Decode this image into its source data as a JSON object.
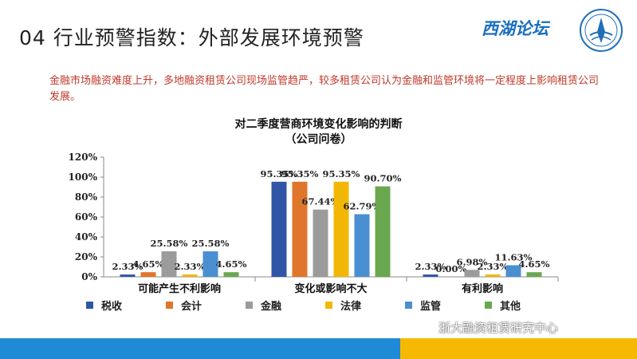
{
  "slide": {
    "title": "04 行业预警指数：外部发展环境预警",
    "logo_text": "西湖论坛",
    "intro": "金融市场融资难度上升，多地融资租赁公司现场监管趋严，较多租赁公司认为金融和监管环境将一定程度上影响租赁公司发展。",
    "watermark": "浙大融资租赁研究中心"
  },
  "chart_data": {
    "type": "bar",
    "title": "对二季度营商环境变化影响的判断",
    "subtitle": "（公司问卷）",
    "categories": [
      "可能产生不利影响",
      "变化或影响不大",
      "有利影响"
    ],
    "y_ticks": [
      "0%",
      "20%",
      "40%",
      "60%",
      "80%",
      "100%",
      "120%"
    ],
    "ylim": [
      0,
      120
    ],
    "grid": false,
    "legend_position": "bottom",
    "series": [
      {
        "name": "税收",
        "color": "#2f56a6",
        "values": [
          2.33,
          95.35,
          2.33
        ],
        "labels": [
          "2.33%",
          "95.35%",
          "2.33%"
        ]
      },
      {
        "name": "会计",
        "color": "#e0762b",
        "values": [
          4.65,
          95.35,
          0.0
        ],
        "labels": [
          "4.65%",
          "95.35%",
          "0.00%"
        ]
      },
      {
        "name": "金融",
        "color": "#9b9b9b",
        "values": [
          25.58,
          67.44,
          6.98
        ],
        "labels": [
          "25.58%",
          "67.44%",
          "6.98%"
        ]
      },
      {
        "name": "法律",
        "color": "#f2b705",
        "values": [
          2.33,
          95.35,
          2.33
        ],
        "labels": [
          "2.33%",
          "95.35%",
          "2.33%"
        ]
      },
      {
        "name": "监管",
        "color": "#4a8fd1",
        "values": [
          25.58,
          62.79,
          11.63
        ],
        "labels": [
          "25.58%",
          "62.79%",
          "11.63%"
        ]
      },
      {
        "name": "其他",
        "color": "#6aa84f",
        "values": [
          4.65,
          90.7,
          4.65
        ],
        "labels": [
          "4.65%",
          "90.70%",
          "4.65%"
        ]
      }
    ]
  }
}
